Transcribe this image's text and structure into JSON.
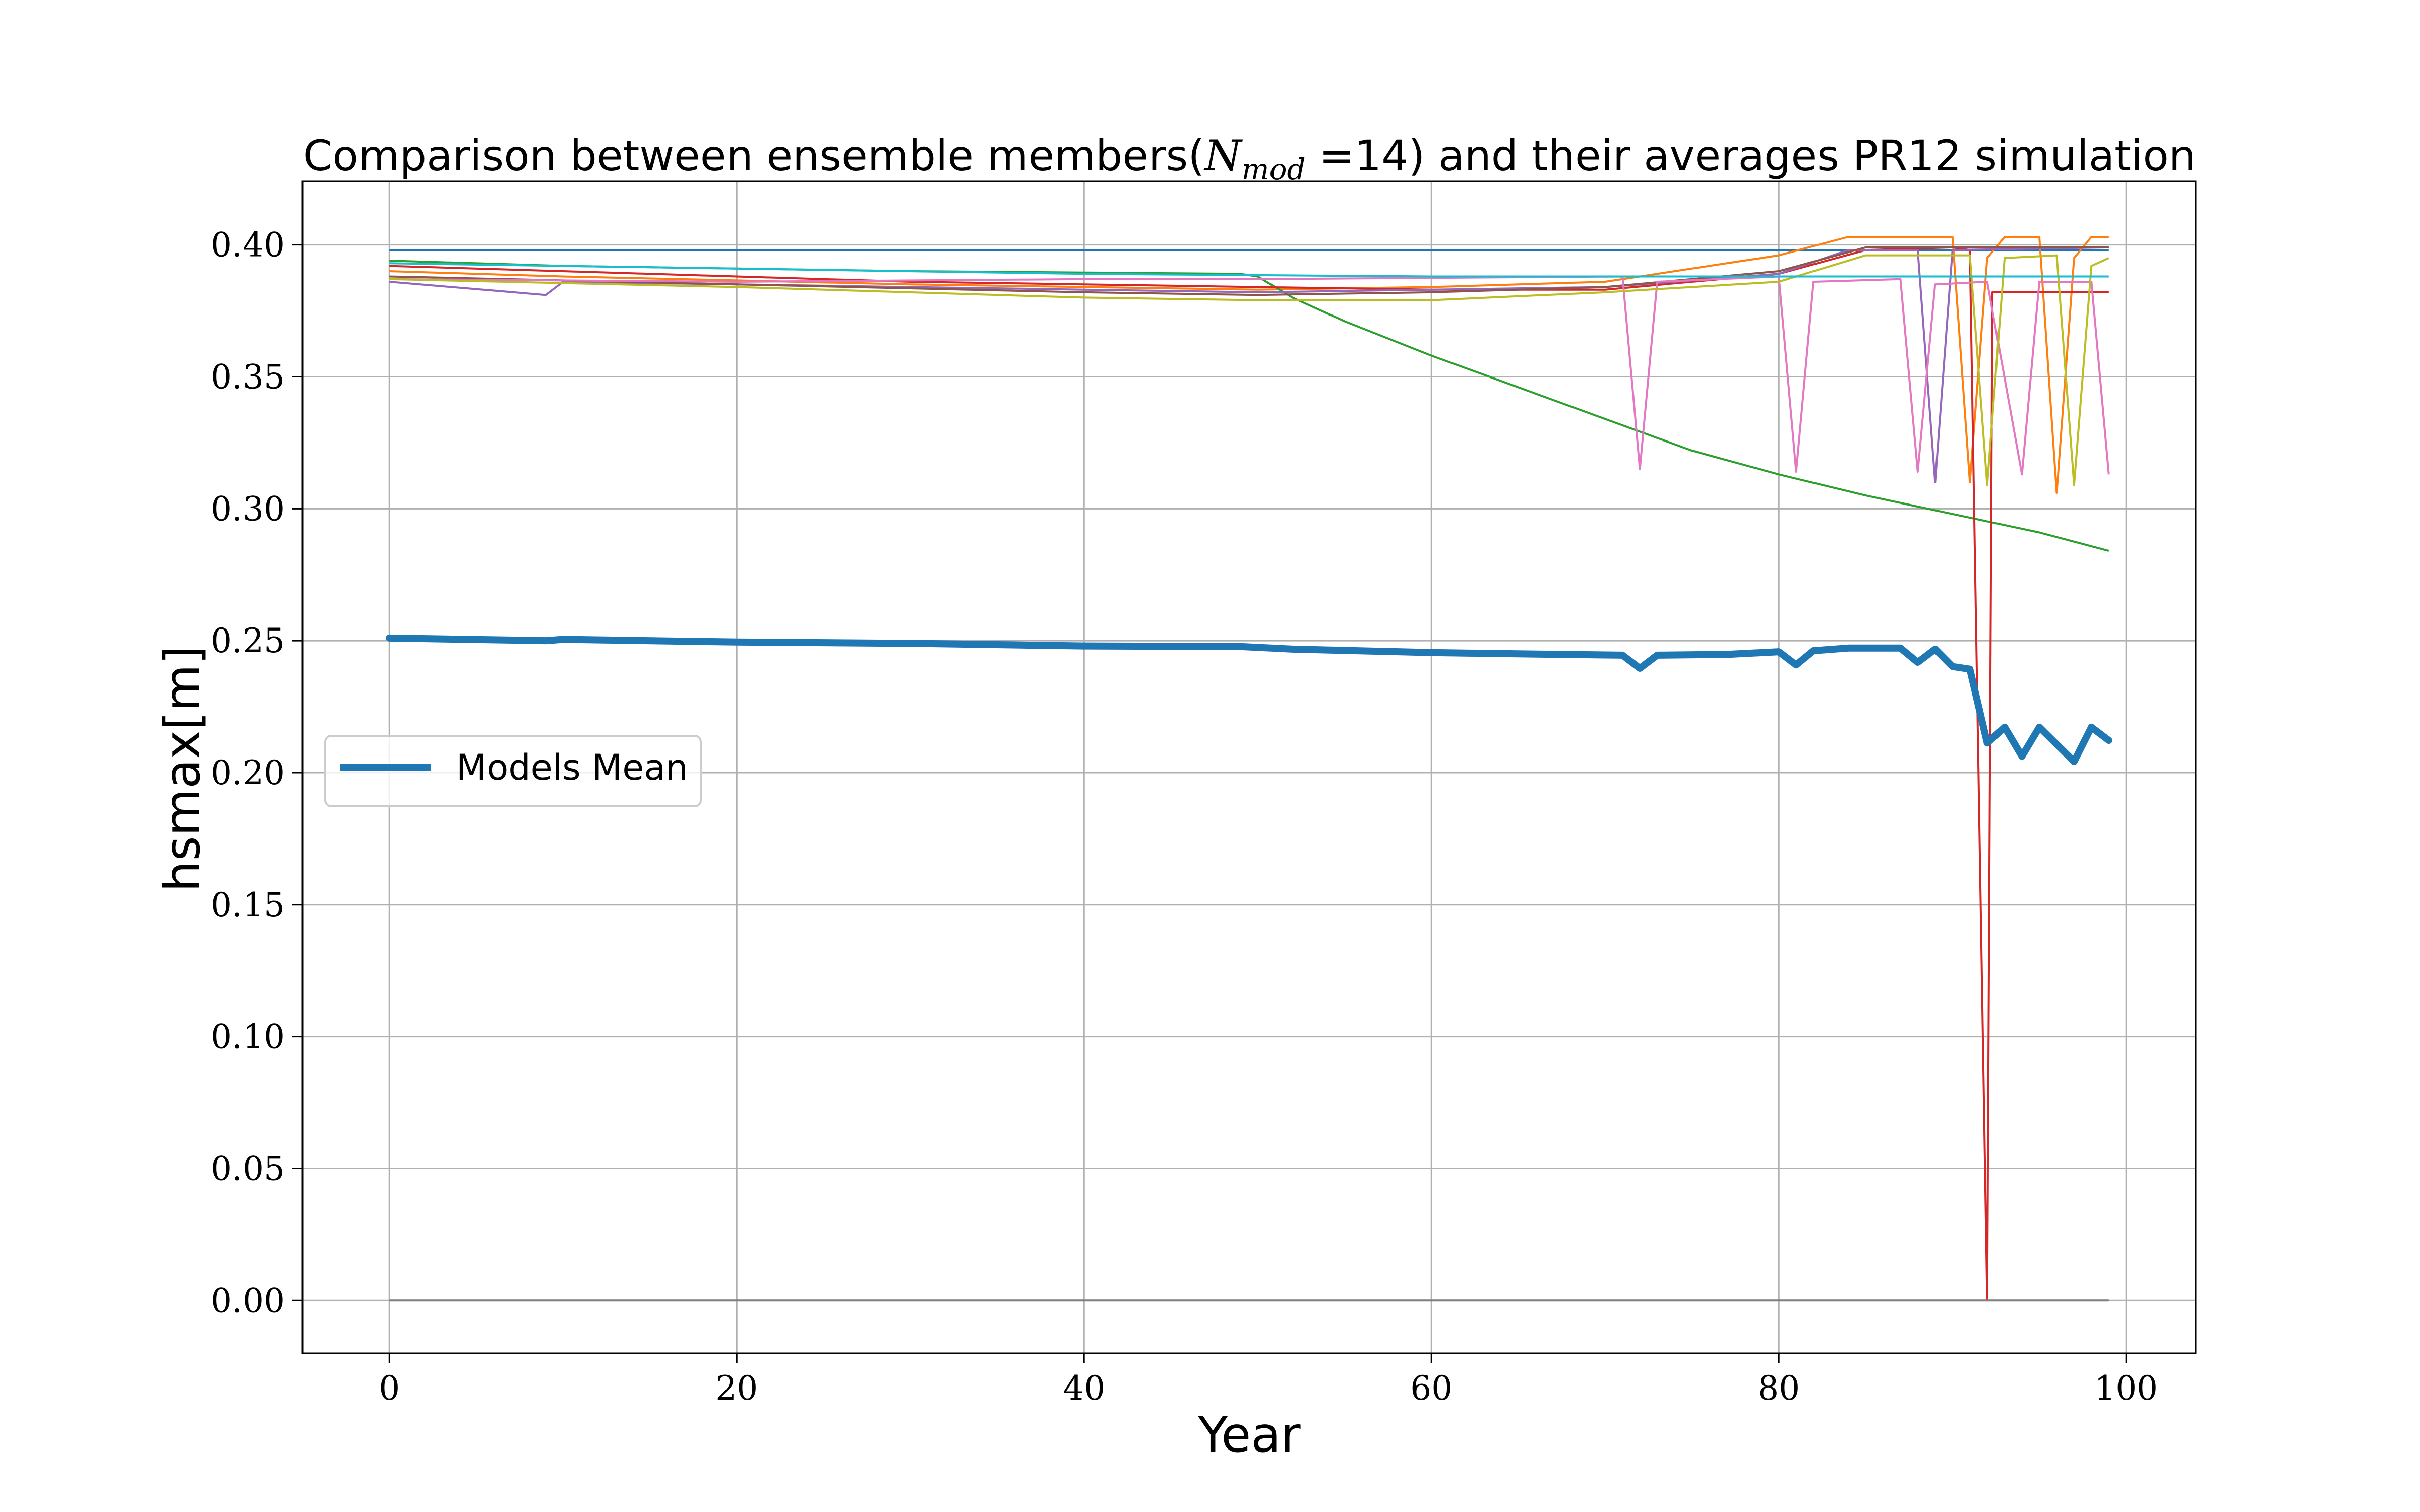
{
  "chart_data": {
    "type": "line",
    "title": {
      "prefix": "Comparison between ensemble members(",
      "math_base": "N",
      "math_sub": "mod",
      "math_eq": " =14",
      "suffix": ") and their averages PR12 simulation"
    },
    "xlabel": "Year",
    "ylabel": "hsmax[m]",
    "xlim": [
      -5,
      104
    ],
    "ylim": [
      -0.02,
      0.424
    ],
    "xticks": [
      0,
      20,
      40,
      60,
      80,
      100
    ],
    "xtick_labels": [
      "0",
      "20",
      "40",
      "60",
      "80",
      "100"
    ],
    "yticks": [
      0.0,
      0.05,
      0.1,
      0.15,
      0.2,
      0.25,
      0.3,
      0.35,
      0.4
    ],
    "ytick_labels": [
      "0.00",
      "0.05",
      "0.10",
      "0.15",
      "0.20",
      "0.25",
      "0.30",
      "0.35",
      "0.40"
    ],
    "grid": true,
    "legend": {
      "placement": "center-left",
      "entries": [
        {
          "label": "Models Mean",
          "color": "#1f77b4"
        }
      ]
    },
    "mean_series": {
      "name": "Models Mean",
      "color": "#1f77b4",
      "points": [
        [
          0,
          0.251
        ],
        [
          9,
          0.25
        ],
        [
          10,
          0.2505
        ],
        [
          20,
          0.2495
        ],
        [
          30,
          0.249
        ],
        [
          40,
          0.248
        ],
        [
          49,
          0.2478
        ],
        [
          52,
          0.2468
        ],
        [
          60,
          0.2455
        ],
        [
          65,
          0.245
        ],
        [
          71,
          0.2445
        ],
        [
          72,
          0.2395
        ],
        [
          73,
          0.2445
        ],
        [
          77,
          0.2448
        ],
        [
          80,
          0.2458
        ],
        [
          81,
          0.2408
        ],
        [
          82,
          0.2462
        ],
        [
          84,
          0.2472
        ],
        [
          87,
          0.2472
        ],
        [
          88,
          0.2418
        ],
        [
          89,
          0.2468
        ],
        [
          90,
          0.2402
        ],
        [
          91,
          0.2392
        ],
        [
          92,
          0.2112
        ],
        [
          93,
          0.2172
        ],
        [
          94,
          0.2062
        ],
        [
          95,
          0.2172
        ],
        [
          97,
          0.2042
        ],
        [
          98,
          0.2172
        ],
        [
          99,
          0.2122
        ]
      ]
    },
    "member_series": [
      {
        "color": "#1f77b4",
        "points": [
          [
            0,
            0.398
          ],
          [
            99,
            0.398
          ]
        ]
      },
      {
        "color": "#ff7f0e",
        "points": [
          [
            0,
            0.39
          ],
          [
            10,
            0.388
          ],
          [
            30,
            0.385
          ],
          [
            50,
            0.383
          ],
          [
            60,
            0.384
          ],
          [
            70,
            0.386
          ],
          [
            80,
            0.396
          ],
          [
            84,
            0.403
          ],
          [
            90,
            0.403
          ],
          [
            91,
            0.31
          ],
          [
            92,
            0.395
          ],
          [
            93,
            0.403
          ],
          [
            95,
            0.403
          ],
          [
            96,
            0.306
          ],
          [
            97,
            0.395
          ],
          [
            98,
            0.403
          ],
          [
            99,
            0.403
          ]
        ]
      },
      {
        "color": "#2ca02c",
        "points": [
          [
            0,
            0.394
          ],
          [
            10,
            0.392
          ],
          [
            20,
            0.391
          ],
          [
            30,
            0.39
          ],
          [
            40,
            0.3895
          ],
          [
            49,
            0.389
          ],
          [
            50,
            0.388
          ],
          [
            52,
            0.38
          ],
          [
            55,
            0.371
          ],
          [
            60,
            0.358
          ],
          [
            65,
            0.346
          ],
          [
            70,
            0.334
          ],
          [
            75,
            0.322
          ],
          [
            80,
            0.313
          ],
          [
            85,
            0.305
          ],
          [
            90,
            0.298
          ],
          [
            95,
            0.291
          ],
          [
            99,
            0.284
          ]
        ]
      },
      {
        "color": "#d62728",
        "points": [
          [
            0,
            0.392
          ],
          [
            10,
            0.39
          ],
          [
            20,
            0.388
          ],
          [
            30,
            0.386
          ],
          [
            40,
            0.385
          ],
          [
            50,
            0.384
          ],
          [
            60,
            0.383
          ],
          [
            70,
            0.383
          ],
          [
            80,
            0.389
          ],
          [
            85,
            0.398
          ],
          [
            90,
            0.399
          ],
          [
            91,
            0.398
          ],
          [
            92,
            0.0
          ],
          [
            92.3,
            0.382
          ],
          [
            99,
            0.382
          ]
        ]
      },
      {
        "color": "#9467bd",
        "points": [
          [
            0,
            0.386
          ],
          [
            9,
            0.381
          ],
          [
            10,
            0.386
          ],
          [
            20,
            0.385
          ],
          [
            30,
            0.384
          ],
          [
            40,
            0.383
          ],
          [
            50,
            0.382
          ],
          [
            60,
            0.383
          ],
          [
            70,
            0.384
          ],
          [
            80,
            0.389
          ],
          [
            84,
            0.398
          ],
          [
            88,
            0.398
          ],
          [
            89,
            0.31
          ],
          [
            90,
            0.398
          ],
          [
            99,
            0.399
          ]
        ]
      },
      {
        "color": "#8c564b",
        "points": [
          [
            0,
            0.388
          ],
          [
            20,
            0.385
          ],
          [
            40,
            0.382
          ],
          [
            50,
            0.381
          ],
          [
            60,
            0.382
          ],
          [
            70,
            0.384
          ],
          [
            80,
            0.39
          ],
          [
            85,
            0.399
          ],
          [
            99,
            0.399
          ]
        ]
      },
      {
        "color": "#e377c2",
        "points": [
          [
            0,
            0.387
          ],
          [
            20,
            0.386
          ],
          [
            40,
            0.387
          ],
          [
            50,
            0.387
          ],
          [
            71,
            0.388
          ],
          [
            72,
            0.315
          ],
          [
            73,
            0.386
          ],
          [
            80,
            0.388
          ],
          [
            81,
            0.314
          ],
          [
            82,
            0.386
          ],
          [
            87,
            0.387
          ],
          [
            88,
            0.314
          ],
          [
            89,
            0.385
          ],
          [
            92,
            0.386
          ],
          [
            94,
            0.313
          ],
          [
            95,
            0.386
          ],
          [
            97,
            0.386
          ],
          [
            98,
            0.386
          ],
          [
            99,
            0.313
          ]
        ]
      },
      {
        "color": "#7f7f7f",
        "points": [
          [
            0,
            0.0
          ],
          [
            99,
            0.0
          ]
        ]
      },
      {
        "color": "#bcbd22",
        "points": [
          [
            0,
            0.387
          ],
          [
            20,
            0.384
          ],
          [
            40,
            0.38
          ],
          [
            50,
            0.379
          ],
          [
            60,
            0.379
          ],
          [
            70,
            0.382
          ],
          [
            80,
            0.386
          ],
          [
            85,
            0.396
          ],
          [
            91,
            0.396
          ],
          [
            92,
            0.309
          ],
          [
            93,
            0.395
          ],
          [
            96,
            0.396
          ],
          [
            97,
            0.309
          ],
          [
            98,
            0.392
          ],
          [
            99,
            0.395
          ]
        ]
      },
      {
        "color": "#17becf",
        "points": [
          [
            0,
            0.393
          ],
          [
            20,
            0.391
          ],
          [
            40,
            0.389
          ],
          [
            60,
            0.388
          ],
          [
            80,
            0.388
          ],
          [
            99,
            0.388
          ]
        ]
      }
    ]
  }
}
